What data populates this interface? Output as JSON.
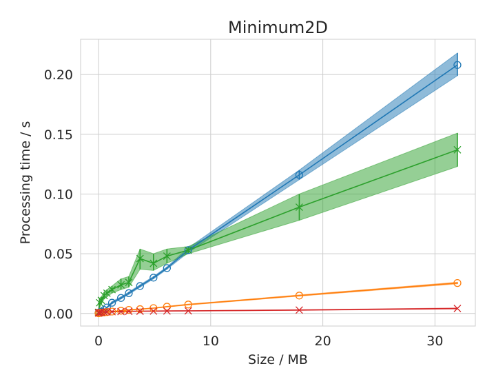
{
  "chart_data": {
    "type": "line",
    "title": "Minimum2D",
    "xlabel": "Size / MB",
    "ylabel": "Processing time / s",
    "xlim": [
      -1.6,
      33.6
    ],
    "ylim": [
      -0.0105,
      0.2295
    ],
    "xticks": [
      0,
      10,
      20,
      30
    ],
    "xtick_labels": [
      "0",
      "10",
      "20",
      "30"
    ],
    "yticks": [
      0.0,
      0.05,
      0.1,
      0.15,
      0.2
    ],
    "ytick_labels": [
      "0.00",
      "0.05",
      "0.10",
      "0.15",
      "0.20"
    ],
    "grid": true,
    "legend": "none",
    "series": [
      {
        "color": "#1f77b4",
        "marker": "circle",
        "x": [
          0.0,
          0.1,
          0.25,
          0.5,
          0.75,
          1.2,
          2.0,
          2.7,
          3.7,
          4.9,
          6.1,
          8.0,
          17.9,
          32.0
        ],
        "y": [
          0.0005,
          0.001,
          0.0015,
          0.003,
          0.005,
          0.009,
          0.013,
          0.017,
          0.023,
          0.03,
          0.038,
          0.053,
          0.116,
          0.208
        ],
        "lower": [
          0.0003,
          0.0008,
          0.0012,
          0.0025,
          0.0045,
          0.008,
          0.012,
          0.016,
          0.022,
          0.029,
          0.037,
          0.051,
          0.112,
          0.199
        ],
        "upper": [
          0.0007,
          0.0012,
          0.0018,
          0.0035,
          0.0055,
          0.01,
          0.014,
          0.018,
          0.024,
          0.031,
          0.039,
          0.055,
          0.12,
          0.218
        ]
      },
      {
        "color": "#2ca02c",
        "marker": "x",
        "x": [
          0.0,
          0.1,
          0.25,
          0.5,
          0.75,
          1.2,
          2.0,
          2.7,
          3.7,
          4.9,
          6.1,
          8.0,
          17.9,
          32.0
        ],
        "y": [
          0.001,
          0.009,
          0.011,
          0.015,
          0.017,
          0.02,
          0.024,
          0.026,
          0.046,
          0.042,
          0.048,
          0.053,
          0.089,
          0.137
        ],
        "lower": [
          0.0,
          0.005,
          0.008,
          0.012,
          0.014,
          0.017,
          0.02,
          0.022,
          0.037,
          0.036,
          0.042,
          0.05,
          0.078,
          0.123
        ],
        "upper": [
          0.002,
          0.013,
          0.014,
          0.018,
          0.02,
          0.023,
          0.029,
          0.031,
          0.054,
          0.05,
          0.054,
          0.056,
          0.1,
          0.151
        ]
      },
      {
        "color": "#ff7f0e",
        "marker": "circle",
        "x": [
          0.0,
          0.1,
          0.25,
          0.5,
          0.75,
          1.2,
          2.0,
          2.7,
          3.7,
          4.9,
          6.1,
          8.0,
          17.9,
          32.0
        ],
        "y": [
          0.0002,
          0.0004,
          0.0006,
          0.0009,
          0.0012,
          0.0016,
          0.0023,
          0.003,
          0.0036,
          0.0045,
          0.0057,
          0.0075,
          0.015,
          0.0255
        ],
        "lower": [
          0.0001,
          0.0003,
          0.0005,
          0.0008,
          0.0011,
          0.0015,
          0.0021,
          0.0028,
          0.0034,
          0.0043,
          0.0054,
          0.0071,
          0.0145,
          0.0248
        ],
        "upper": [
          0.0003,
          0.0005,
          0.0007,
          0.001,
          0.0013,
          0.0017,
          0.0025,
          0.0032,
          0.0038,
          0.0047,
          0.006,
          0.0079,
          0.0155,
          0.0262
        ]
      },
      {
        "color": "#d62728",
        "marker": "x",
        "x": [
          0.0,
          0.1,
          0.25,
          0.5,
          0.75,
          1.2,
          2.0,
          2.7,
          3.7,
          4.9,
          6.1,
          8.0,
          17.9,
          32.0
        ],
        "y": [
          0.0004,
          0.0008,
          0.001,
          0.0012,
          0.0013,
          0.0015,
          0.0016,
          0.0018,
          0.0019,
          0.002,
          0.0021,
          0.0022,
          0.0029,
          0.0042
        ],
        "lower": [
          0.0002,
          0.0006,
          0.0008,
          0.001,
          0.0011,
          0.0013,
          0.0014,
          0.0016,
          0.0017,
          0.0018,
          0.0019,
          0.002,
          0.0026,
          0.0038
        ],
        "upper": [
          0.0006,
          0.001,
          0.0012,
          0.0014,
          0.0015,
          0.0017,
          0.0018,
          0.002,
          0.0021,
          0.0022,
          0.0023,
          0.0024,
          0.0032,
          0.0046
        ]
      }
    ]
  }
}
